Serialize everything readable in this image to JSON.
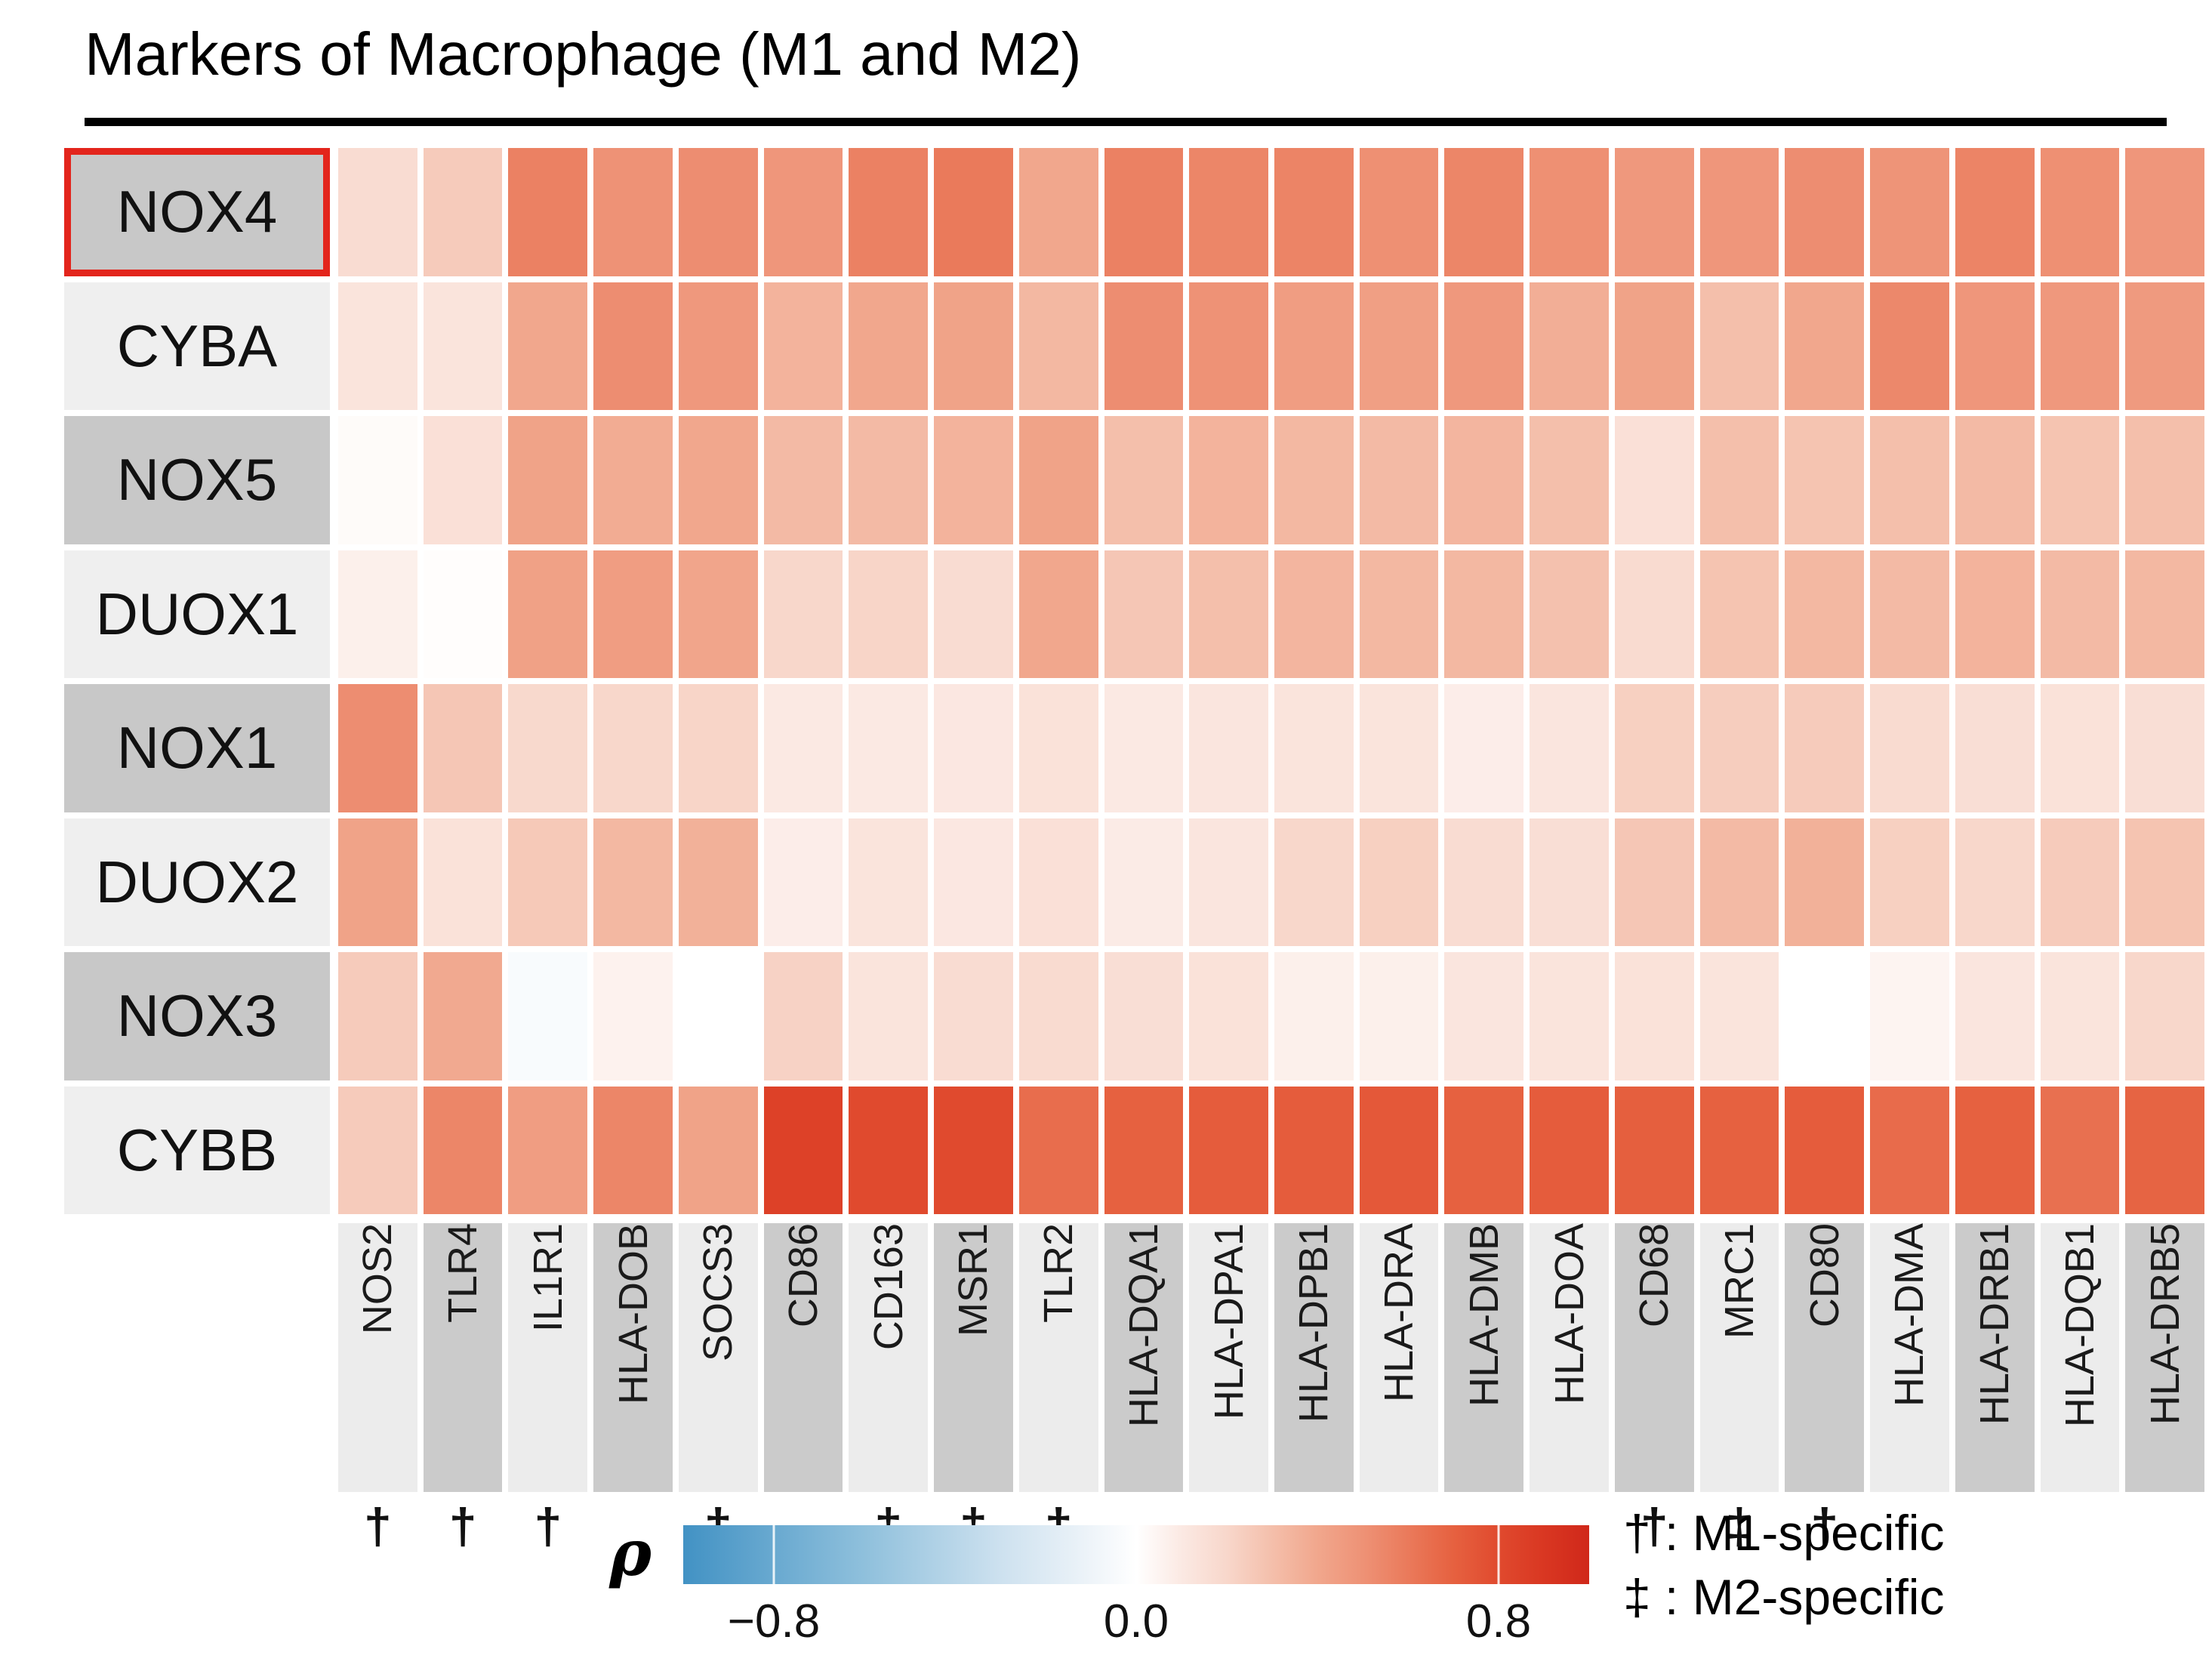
{
  "title": "Markers of Macrophage (M1 and M2)",
  "legend": {
    "rho_label": "ρ",
    "m1_line": "† : M1-specific",
    "m2_line": "‡ : M2-specific",
    "m1_symbol": "†",
    "m2_symbol": "‡"
  },
  "colors": {
    "row_label_dark": "#c8c8c8",
    "row_label_light": "#efefef",
    "col_label_dark": "#cbcbcb",
    "col_label_light": "#ececec",
    "highlight_red": "#e3251c",
    "title_rule": "#000000"
  },
  "chart_data": {
    "type": "heatmap",
    "title": "Markers of Macrophage (M1 and M2)",
    "rows": [
      "NOX4",
      "CYBA",
      "NOX5",
      "DUOX1",
      "NOX1",
      "DUOX2",
      "NOX3",
      "CYBB"
    ],
    "highlighted_row": "NOX4",
    "columns": [
      "NOS2",
      "TLR4",
      "IL1R1",
      "HLA-DOB",
      "SOCS3",
      "CD86",
      "CD163",
      "MSR1",
      "TLR2",
      "HLA-DQA1",
      "HLA-DPA1",
      "HLA-DPB1",
      "HLA-DRA",
      "HLA-DMB",
      "HLA-DOA",
      "CD68",
      "MRC1",
      "CD80",
      "HLA-DMA",
      "HLA-DRB1",
      "HLA-DQB1",
      "HLA-DRB5"
    ],
    "column_specificity": [
      "M1",
      "M1",
      "M1",
      "",
      "M1",
      "",
      "M2",
      "M2",
      "M1",
      "",
      "",
      "",
      "",
      "",
      "",
      "M1",
      "M2",
      "M1",
      "",
      "",
      "",
      ""
    ],
    "values": [
      [
        0.17,
        0.25,
        0.57,
        0.5,
        0.52,
        0.48,
        0.57,
        0.6,
        0.4,
        0.57,
        0.55,
        0.56,
        0.51,
        0.55,
        0.51,
        0.47,
        0.48,
        0.52,
        0.49,
        0.56,
        0.51,
        0.48
      ],
      [
        0.13,
        0.13,
        0.4,
        0.52,
        0.47,
        0.35,
        0.4,
        0.42,
        0.33,
        0.52,
        0.5,
        0.45,
        0.44,
        0.47,
        0.37,
        0.42,
        0.3,
        0.4,
        0.54,
        0.48,
        0.47,
        0.46
      ],
      [
        0.02,
        0.15,
        0.42,
        0.38,
        0.4,
        0.32,
        0.32,
        0.35,
        0.42,
        0.3,
        0.35,
        0.33,
        0.32,
        0.34,
        0.3,
        0.15,
        0.3,
        0.28,
        0.3,
        0.32,
        0.28,
        0.3
      ],
      [
        0.07,
        0.01,
        0.43,
        0.45,
        0.41,
        0.2,
        0.21,
        0.17,
        0.4,
        0.27,
        0.3,
        0.34,
        0.33,
        0.33,
        0.29,
        0.18,
        0.28,
        0.33,
        0.32,
        0.35,
        0.32,
        0.33
      ],
      [
        0.52,
        0.27,
        0.19,
        0.2,
        0.21,
        0.1,
        0.1,
        0.11,
        0.14,
        0.1,
        0.12,
        0.13,
        0.13,
        0.08,
        0.12,
        0.23,
        0.24,
        0.25,
        0.18,
        0.16,
        0.14,
        0.16
      ],
      [
        0.42,
        0.14,
        0.26,
        0.33,
        0.36,
        0.08,
        0.13,
        0.11,
        0.15,
        0.09,
        0.12,
        0.2,
        0.23,
        0.17,
        0.16,
        0.27,
        0.32,
        0.36,
        0.23,
        0.2,
        0.25,
        0.28
      ],
      [
        0.25,
        0.39,
        -0.04,
        0.06,
        0.0,
        0.22,
        0.13,
        0.17,
        0.18,
        0.16,
        0.14,
        0.07,
        0.07,
        0.12,
        0.13,
        0.14,
        0.13,
        0.0,
        0.05,
        0.12,
        0.13,
        0.2
      ],
      [
        0.25,
        0.55,
        0.45,
        0.55,
        0.42,
        0.85,
        0.8,
        0.8,
        0.65,
        0.7,
        0.72,
        0.72,
        0.74,
        0.7,
        0.72,
        0.71,
        0.7,
        0.72,
        0.66,
        0.7,
        0.64,
        0.69
      ]
    ],
    "colorscale_anchors": [
      [
        -1.0,
        "#4292c4"
      ],
      [
        -0.6,
        "#8fc0dc"
      ],
      [
        -0.3,
        "#cde1ef"
      ],
      [
        -0.1,
        "#eef4f9"
      ],
      [
        0.0,
        "#ffffff"
      ],
      [
        0.1,
        "#fbe9e3"
      ],
      [
        0.2,
        "#f8d7cb"
      ],
      [
        0.3,
        "#f4bfab"
      ],
      [
        0.4,
        "#f1a78d"
      ],
      [
        0.5,
        "#ee9276"
      ],
      [
        0.6,
        "#ea7a5b"
      ],
      [
        0.7,
        "#e66140"
      ],
      [
        0.8,
        "#e04a2e"
      ],
      [
        0.9,
        "#d93722"
      ],
      [
        1.0,
        "#d0281a"
      ]
    ],
    "colorbar_range": [
      -1,
      1
    ],
    "colorbar_ticks": [
      {
        "value": -0.8,
        "label": "−0.8"
      },
      {
        "value": 0.0,
        "label": "0.0"
      },
      {
        "value": 0.8,
        "label": "0.8"
      }
    ],
    "legend_position": "bottom",
    "grid": "off"
  }
}
